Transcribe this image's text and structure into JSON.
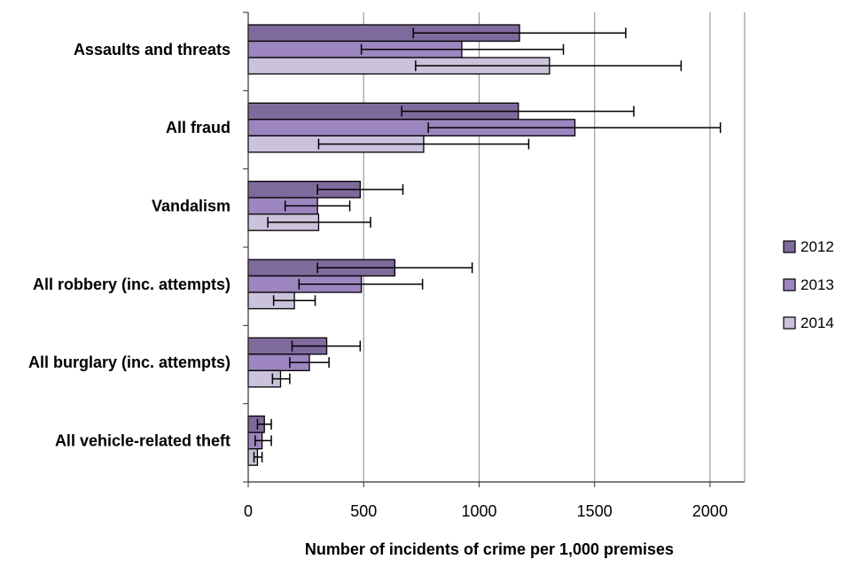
{
  "chart_data": {
    "type": "bar",
    "orientation": "horizontal",
    "title": "",
    "xlabel": "Number of incidents of crime per 1,000 premises",
    "ylabel": "",
    "xlim": [
      0,
      2150
    ],
    "xticks": [
      0,
      500,
      1000,
      1500,
      2000
    ],
    "grid": "vertical",
    "legend_position": "right",
    "categories": [
      "Assaults and threats",
      "All fraud",
      "Vandalism",
      "All robbery (inc. attempts)",
      "All burglary (inc. attempts)",
      "All vehicle-related theft"
    ],
    "series": [
      {
        "name": "2012",
        "color": "#7f6a9c",
        "values": [
          1175,
          1170,
          485,
          635,
          340,
          70
        ],
        "error_low": [
          715,
          665,
          300,
          300,
          190,
          40
        ],
        "error_high": [
          1635,
          1670,
          670,
          970,
          485,
          100
        ]
      },
      {
        "name": "2013",
        "color": "#9d85bf",
        "values": [
          925,
          1415,
          300,
          490,
          265,
          60
        ],
        "error_low": [
          490,
          780,
          160,
          220,
          180,
          30
        ],
        "error_high": [
          1365,
          2045,
          440,
          755,
          350,
          100
        ]
      },
      {
        "name": "2014",
        "color": "#cbc2db",
        "values": [
          1305,
          760,
          305,
          200,
          140,
          40
        ],
        "error_low": [
          725,
          305,
          85,
          110,
          105,
          25
        ],
        "error_high": [
          1875,
          1215,
          530,
          290,
          180,
          60
        ]
      }
    ]
  }
}
